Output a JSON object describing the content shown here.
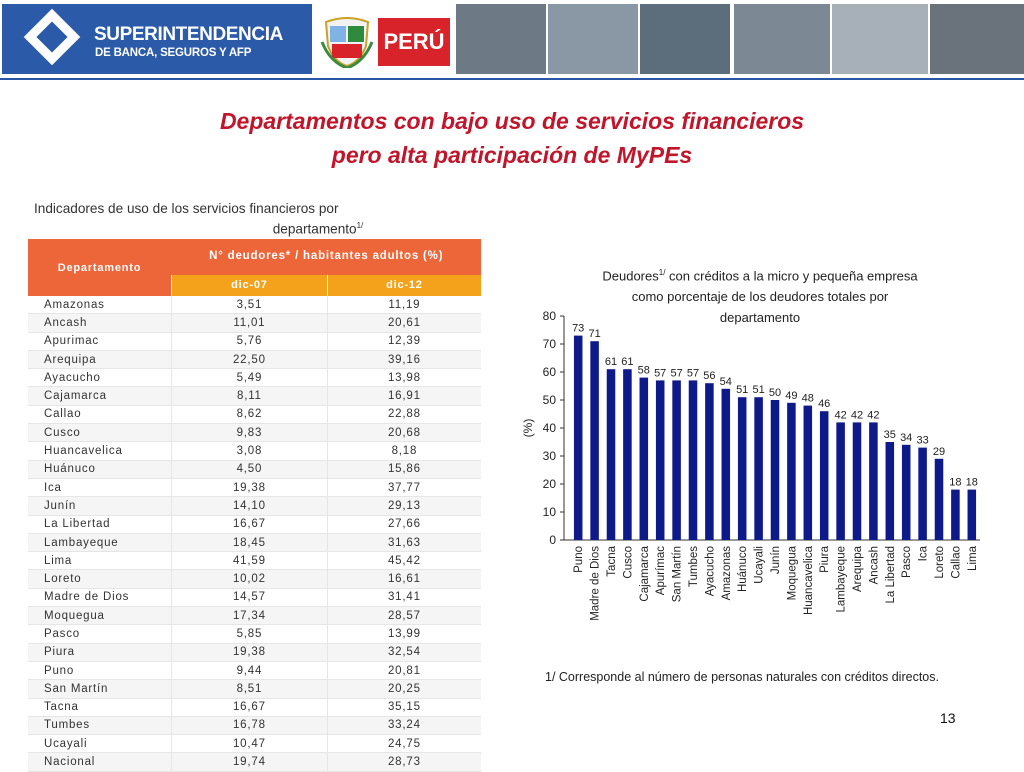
{
  "header": {
    "logo_line1": "SUPERINTENDENCIA",
    "logo_line2": "DE BANCA, SEGUROS Y AFP",
    "country_badge": "PERÚ",
    "icons": [
      "sbs-logo-icon",
      "peru-shield-icon"
    ]
  },
  "title_line1": "Departamentos con bajo uso de servicios financieros",
  "title_line2": "pero alta participación de MyPEs",
  "table": {
    "title_line1": "Indicadores de uso de los servicios financieros por",
    "title_line2": "departamento",
    "title_sup": "1/",
    "col_dept": "Departamento",
    "col_main": "N° deudores* / habitantes adultos (%)",
    "col_a": "dic-07",
    "col_b": "dic-12",
    "rows": [
      {
        "dept": "Amazonas",
        "a": "3,51",
        "b": "11,19"
      },
      {
        "dept": "Ancash",
        "a": "11,01",
        "b": "20,61"
      },
      {
        "dept": "Apurimac",
        "a": "5,76",
        "b": "12,39"
      },
      {
        "dept": "Arequipa",
        "a": "22,50",
        "b": "39,16"
      },
      {
        "dept": "Ayacucho",
        "a": "5,49",
        "b": "13,98"
      },
      {
        "dept": "Cajamarca",
        "a": "8,11",
        "b": "16,91"
      },
      {
        "dept": "Callao",
        "a": "8,62",
        "b": "22,88"
      },
      {
        "dept": "Cusco",
        "a": "9,83",
        "b": "20,68"
      },
      {
        "dept": "Huancavelica",
        "a": "3,08",
        "b": "8,18"
      },
      {
        "dept": "Huánuco",
        "a": "4,50",
        "b": "15,86"
      },
      {
        "dept": "Ica",
        "a": "19,38",
        "b": "37,77"
      },
      {
        "dept": "Junín",
        "a": "14,10",
        "b": "29,13"
      },
      {
        "dept": "La Libertad",
        "a": "16,67",
        "b": "27,66"
      },
      {
        "dept": "Lambayeque",
        "a": "18,45",
        "b": "31,63"
      },
      {
        "dept": "Lima",
        "a": "41,59",
        "b": "45,42"
      },
      {
        "dept": "Loreto",
        "a": "10,02",
        "b": "16,61"
      },
      {
        "dept": "Madre de Dios",
        "a": "14,57",
        "b": "31,41"
      },
      {
        "dept": "Moquegua",
        "a": "17,34",
        "b": "28,57"
      },
      {
        "dept": "Pasco",
        "a": "5,85",
        "b": "13,99"
      },
      {
        "dept": "Piura",
        "a": "19,38",
        "b": "32,54"
      },
      {
        "dept": "Puno",
        "a": "9,44",
        "b": "20,81"
      },
      {
        "dept": "San Martín",
        "a": "8,51",
        "b": "20,25"
      },
      {
        "dept": "Tacna",
        "a": "16,67",
        "b": "35,15"
      },
      {
        "dept": "Tumbes",
        "a": "16,78",
        "b": "33,24"
      },
      {
        "dept": "Ucayali",
        "a": "10,47",
        "b": "24,75"
      },
      {
        "dept": "Nacional",
        "a": "19,74",
        "b": "28,73"
      }
    ]
  },
  "chart_data": {
    "type": "bar",
    "title_line1": "Deudores",
    "title_sup": "1/",
    "title_line1_rest": "con créditos a la micro y pequeña empresa",
    "title_line2": "como porcentaje de los deudores totales por",
    "title_line3": "departamento",
    "ylabel": "(%)",
    "ylim": [
      0,
      80
    ],
    "yticks": [
      0,
      10,
      20,
      30,
      40,
      50,
      60,
      70,
      80
    ],
    "categories": [
      "Puno",
      "Madre de Dios",
      "Tacna",
      "Cusco",
      "Cajamarca",
      "Apurímac",
      "San Martín",
      "Tumbes",
      "Ayacucho",
      "Amazonas",
      "Huánuco",
      "Ucayali",
      "Junín",
      "Moquegua",
      "Huancavelica",
      "Piura",
      "Lambayeque",
      "Arequipa",
      "Ancash",
      "La Libertad",
      "Pasco",
      "Ica",
      "Loreto",
      "Callao",
      "Lima"
    ],
    "values": [
      73,
      71,
      61,
      61,
      58,
      57,
      57,
      57,
      56,
      54,
      51,
      51,
      50,
      49,
      48,
      46,
      42,
      42,
      42,
      35,
      34,
      33,
      29,
      18,
      18
    ],
    "bar_color": "#0e1a8a",
    "grid": false
  },
  "footnote": "1/ Corresponde al número de personas naturales con créditos directos.",
  "page_number": "13",
  "colors": {
    "title": "#c0152a",
    "header_orange": "#ed6639",
    "subheader_yellow": "#f4a21c",
    "logo_blue": "#2a5aa8"
  }
}
